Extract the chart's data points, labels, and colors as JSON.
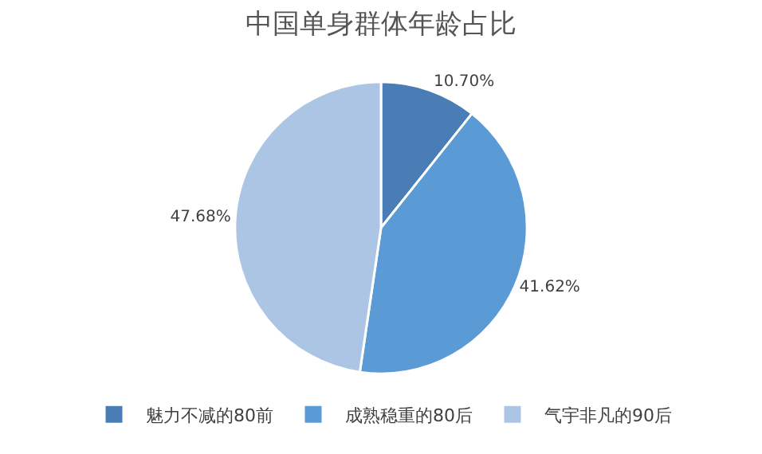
{
  "chart_data": {
    "type": "pie",
    "title": "中国单身群体年龄占比",
    "categories": [
      "魅力不减的80前",
      "成熟稳重的80后",
      "气宇非凡的90后"
    ],
    "values": [
      10.7,
      41.62,
      47.68
    ],
    "value_labels": [
      "10.70%",
      "41.62%",
      "47.68%"
    ],
    "colors": [
      "#4a7db5",
      "#5b9bd5",
      "#adc5e5"
    ],
    "legend": "bottom"
  }
}
